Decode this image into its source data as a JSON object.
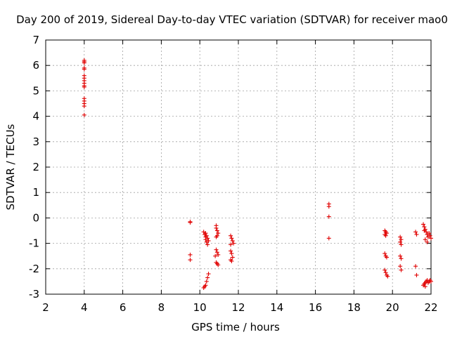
{
  "chart_data": {
    "type": "scatter",
    "title": "Day 200 of 2019, Sidereal Day-to-day VTEC variation (SDTVAR) for receiver mao0",
    "xlabel": "GPS time / hours",
    "ylabel": "SDTVAR / TECUs",
    "xlim": [
      2,
      22
    ],
    "ylim": [
      -3,
      7
    ],
    "xticks": [
      "2",
      "4",
      "6",
      "8",
      "10",
      "12",
      "14",
      "16",
      "18",
      "20",
      "22"
    ],
    "yticks": [
      "-3",
      "-2",
      "-1",
      "0",
      "1",
      "2",
      "3",
      "4",
      "5",
      "6",
      "7"
    ],
    "grid": true,
    "marker": "+",
    "marker_color": "#e00000",
    "series": [
      {
        "name": "SDTVAR",
        "points": [
          [
            4.0,
            6.2
          ],
          [
            4.0,
            6.15
          ],
          [
            4.0,
            6.1
          ],
          [
            4.0,
            5.9
          ],
          [
            4.0,
            5.85
          ],
          [
            4.0,
            5.6
          ],
          [
            4.0,
            5.5
          ],
          [
            4.0,
            5.4
          ],
          [
            4.0,
            5.3
          ],
          [
            4.0,
            5.2
          ],
          [
            4.0,
            5.15
          ],
          [
            4.0,
            4.7
          ],
          [
            4.0,
            4.6
          ],
          [
            4.0,
            4.5
          ],
          [
            4.0,
            4.4
          ],
          [
            4.0,
            4.05
          ],
          [
            9.5,
            -0.15
          ],
          [
            9.5,
            -0.18
          ],
          [
            9.5,
            -1.45
          ],
          [
            9.5,
            -1.65
          ],
          [
            10.2,
            -0.55
          ],
          [
            10.25,
            -0.65
          ],
          [
            10.3,
            -0.75
          ],
          [
            10.3,
            -0.85
          ],
          [
            10.35,
            -0.95
          ],
          [
            10.4,
            -1.05
          ],
          [
            10.3,
            -0.6
          ],
          [
            10.35,
            -0.7
          ],
          [
            10.4,
            -0.8
          ],
          [
            10.45,
            -0.9
          ],
          [
            10.2,
            -2.75
          ],
          [
            10.25,
            -2.7
          ],
          [
            10.3,
            -2.65
          ],
          [
            10.35,
            -2.5
          ],
          [
            10.4,
            -2.35
          ],
          [
            10.45,
            -2.2
          ],
          [
            10.85,
            -0.3
          ],
          [
            10.85,
            -0.4
          ],
          [
            10.9,
            -0.5
          ],
          [
            10.95,
            -0.6
          ],
          [
            10.9,
            -0.7
          ],
          [
            10.85,
            -0.75
          ],
          [
            10.85,
            -1.25
          ],
          [
            10.9,
            -1.35
          ],
          [
            10.95,
            -1.45
          ],
          [
            10.8,
            -1.5
          ],
          [
            10.85,
            -1.75
          ],
          [
            10.9,
            -1.8
          ],
          [
            10.95,
            -1.85
          ],
          [
            11.6,
            -0.7
          ],
          [
            11.65,
            -0.8
          ],
          [
            11.7,
            -0.9
          ],
          [
            11.75,
            -1.0
          ],
          [
            11.6,
            -1.05
          ],
          [
            11.6,
            -1.3
          ],
          [
            11.65,
            -1.4
          ],
          [
            11.7,
            -1.55
          ],
          [
            11.6,
            -1.65
          ],
          [
            11.65,
            -1.7
          ],
          [
            16.7,
            0.55
          ],
          [
            16.7,
            0.45
          ],
          [
            16.7,
            0.05
          ],
          [
            16.7,
            -0.8
          ],
          [
            19.6,
            -0.5
          ],
          [
            19.65,
            -0.55
          ],
          [
            19.7,
            -0.6
          ],
          [
            19.6,
            -0.65
          ],
          [
            19.65,
            -0.7
          ],
          [
            19.6,
            -1.4
          ],
          [
            19.65,
            -1.5
          ],
          [
            19.7,
            -1.55
          ],
          [
            19.6,
            -2.05
          ],
          [
            19.65,
            -2.15
          ],
          [
            19.7,
            -2.25
          ],
          [
            19.75,
            -2.3
          ],
          [
            20.4,
            -0.75
          ],
          [
            20.45,
            -0.85
          ],
          [
            20.4,
            -0.95
          ],
          [
            20.45,
            -1.05
          ],
          [
            20.4,
            -1.5
          ],
          [
            20.45,
            -1.6
          ],
          [
            20.4,
            -1.9
          ],
          [
            20.45,
            -2.05
          ],
          [
            21.2,
            -0.55
          ],
          [
            21.25,
            -0.65
          ],
          [
            21.2,
            -1.9
          ],
          [
            21.25,
            -2.25
          ],
          [
            21.6,
            -0.25
          ],
          [
            21.65,
            -0.35
          ],
          [
            21.7,
            -0.45
          ],
          [
            21.75,
            -0.55
          ],
          [
            21.8,
            -0.65
          ],
          [
            21.85,
            -0.75
          ],
          [
            21.7,
            -0.85
          ],
          [
            21.8,
            -0.95
          ],
          [
            21.9,
            -0.6
          ],
          [
            21.95,
            -0.7
          ],
          [
            22.0,
            -0.8
          ],
          [
            21.65,
            -0.5
          ],
          [
            21.6,
            -2.65
          ],
          [
            21.65,
            -2.6
          ],
          [
            21.7,
            -2.55
          ],
          [
            21.75,
            -2.5
          ],
          [
            21.8,
            -2.45
          ],
          [
            21.85,
            -2.55
          ],
          [
            21.9,
            -2.5
          ],
          [
            21.95,
            -2.45
          ],
          [
            22.0,
            -2.5
          ],
          [
            21.7,
            -2.7
          ]
        ]
      }
    ]
  }
}
